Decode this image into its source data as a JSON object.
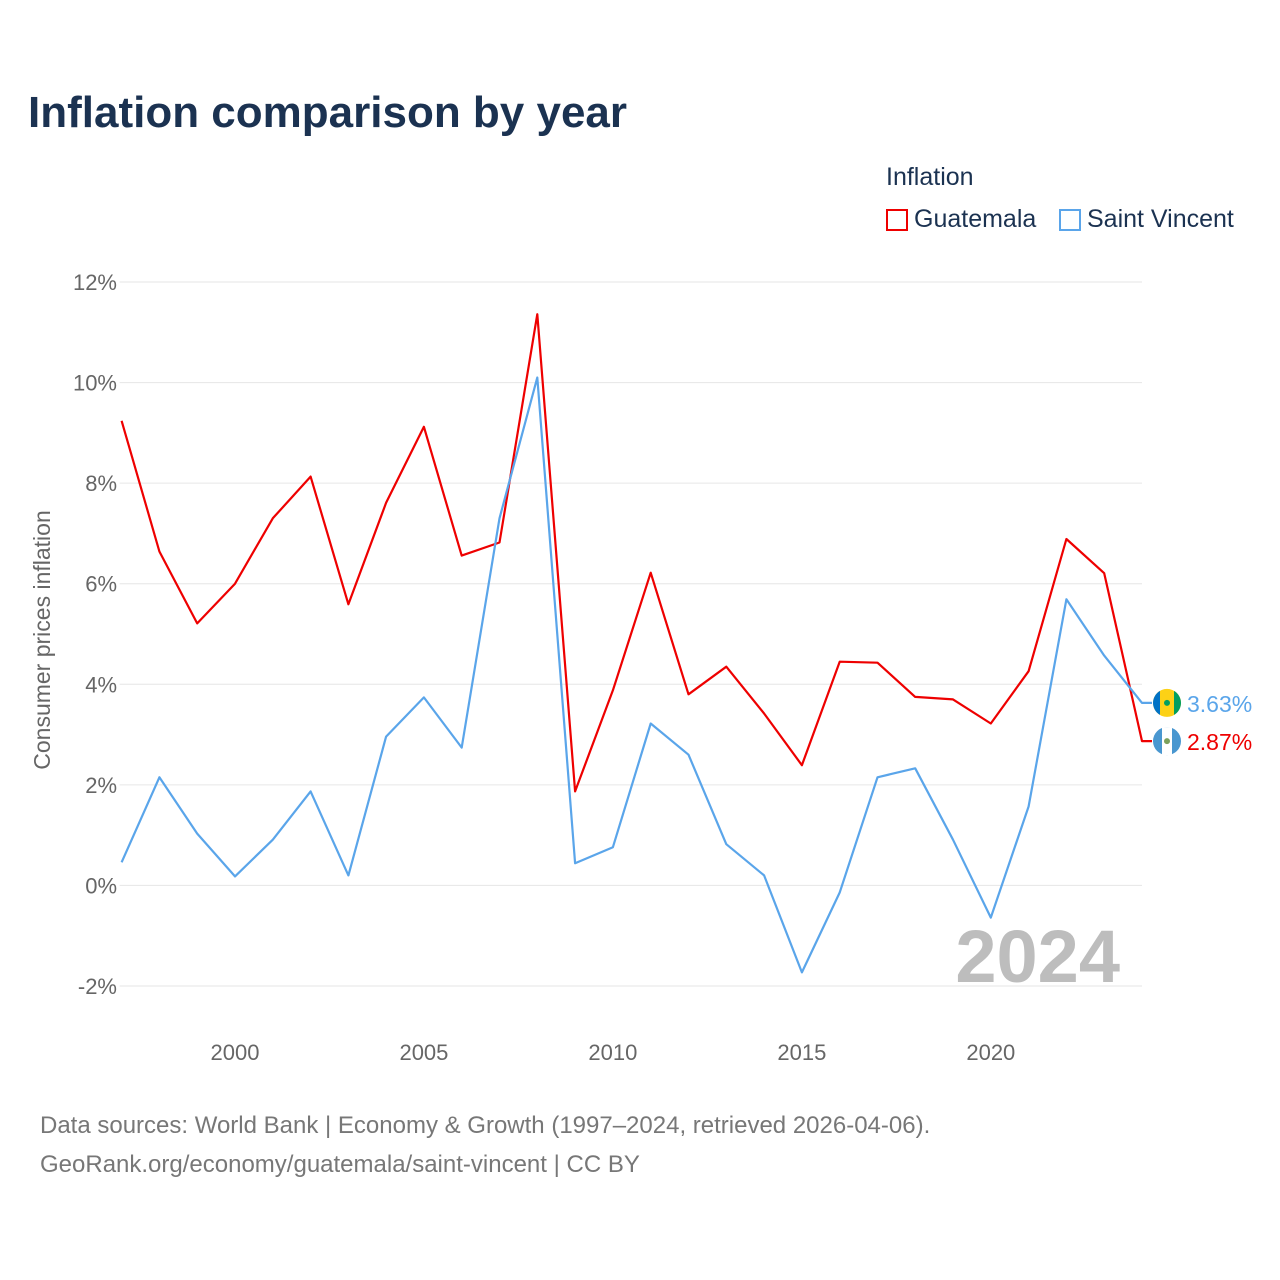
{
  "chart_data": {
    "type": "line",
    "title": "Inflation comparison by year",
    "ylabel": "Consumer prices inflation",
    "xlabel": "",
    "legend_title": "Inflation",
    "legend_placement": "top-right",
    "grid": true,
    "xlim": [
      1997,
      2024
    ],
    "ylim": [
      -2,
      12
    ],
    "y_ticks": [
      -2,
      0,
      2,
      4,
      6,
      8,
      10,
      12
    ],
    "y_tick_labels": [
      "-2%",
      "0%",
      "2%",
      "4%",
      "6%",
      "8%",
      "10%",
      "12%"
    ],
    "x_ticks": [
      2000,
      2005,
      2010,
      2015,
      2020
    ],
    "x_tick_labels": [
      "2000",
      "2005",
      "2010",
      "2015",
      "2020"
    ],
    "year_watermark": "2024",
    "x": [
      1997,
      1998,
      1999,
      2000,
      2001,
      2002,
      2003,
      2004,
      2005,
      2006,
      2007,
      2008,
      2009,
      2010,
      2011,
      2012,
      2013,
      2014,
      2015,
      2016,
      2017,
      2018,
      2019,
      2020,
      2021,
      2022,
      2023,
      2024
    ],
    "series": [
      {
        "name": "Guatemala",
        "color": "#ee0000",
        "end_label": "2.87%",
        "values": [
          9.24,
          6.64,
          5.21,
          6.0,
          7.3,
          8.13,
          5.59,
          7.61,
          9.12,
          6.56,
          6.82,
          11.36,
          1.87,
          3.88,
          6.22,
          3.8,
          4.35,
          3.42,
          2.39,
          4.45,
          4.43,
          3.75,
          3.7,
          3.22,
          4.26,
          6.89,
          6.21,
          2.87
        ]
      },
      {
        "name": "Saint Vincent",
        "color": "#5aa5ea",
        "end_label": "3.63%",
        "values": [
          0.46,
          2.15,
          1.03,
          0.18,
          0.91,
          1.87,
          0.2,
          2.96,
          3.74,
          2.74,
          7.3,
          10.1,
          0.44,
          0.76,
          3.22,
          2.6,
          0.82,
          0.2,
          -1.73,
          -0.14,
          2.15,
          2.33,
          0.91,
          -0.64,
          1.57,
          5.69,
          4.57,
          3.63
        ]
      }
    ]
  },
  "footer": {
    "line1": "Data sources: World Bank | Economy & Growth (1997–2024, retrieved 2026-04-06).",
    "line2": "GeoRank.org/economy/guatemala/saint-vincent | CC BY"
  }
}
